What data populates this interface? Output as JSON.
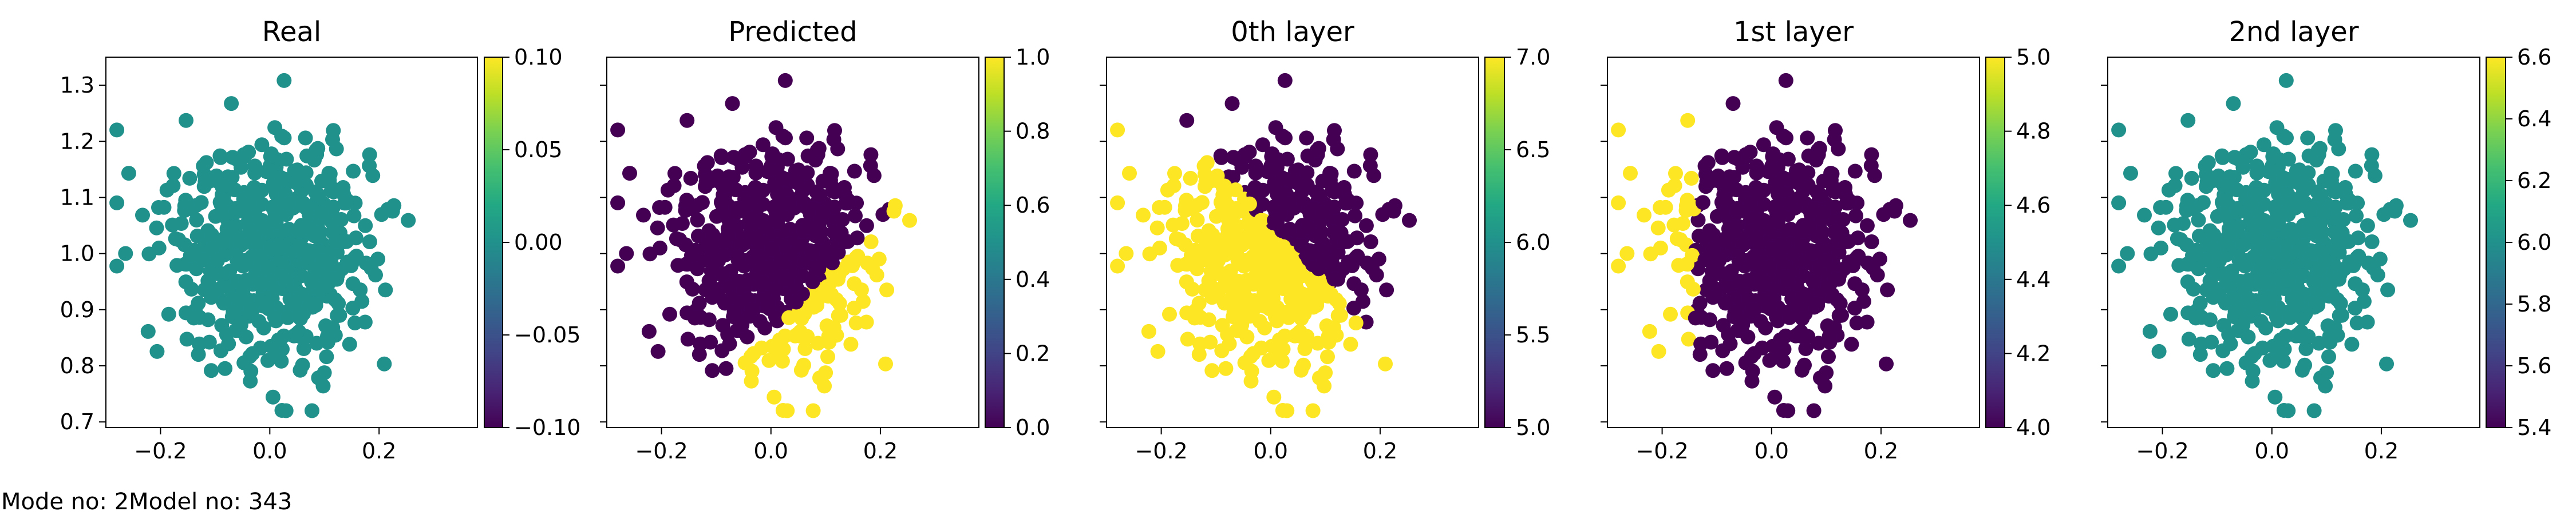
{
  "footer": {
    "mode_text": "Mode no: 2",
    "model_text": "Model no: 343"
  },
  "chart_data": [
    {
      "type": "scatter",
      "title": "Real",
      "xlim": [
        -0.3,
        0.38
      ],
      "ylim": [
        0.69,
        1.35
      ],
      "x_ticks": [
        -0.2,
        0.0,
        0.2
      ],
      "y_ticks": [
        0.7,
        0.8,
        0.9,
        1.0,
        1.1,
        1.2,
        1.3
      ],
      "colorbar": {
        "colormap": "viridis",
        "range": [
          -0.1,
          0.1
        ],
        "ticks": [
          -0.1,
          -0.05,
          0.0,
          0.05,
          0.1
        ]
      },
      "point_value": 0.0,
      "grid": false,
      "legend": null
    },
    {
      "type": "scatter",
      "title": "Predicted",
      "xlim": [
        -0.3,
        0.38
      ],
      "ylim": [
        0.69,
        1.35
      ],
      "x_ticks": [
        -0.2,
        0.0,
        0.2
      ],
      "colorbar": {
        "colormap": "viridis",
        "range": [
          0.0,
          1.0
        ],
        "ticks": [
          0.0,
          0.2,
          0.4,
          0.6,
          0.8,
          1.0
        ]
      },
      "classes": [
        {
          "value": 0,
          "color": "#440154",
          "rule": "x - y <= -0.86"
        },
        {
          "value": 1,
          "color": "#fde725",
          "rule": "x - y > -0.86"
        }
      ],
      "grid": false,
      "legend": null
    },
    {
      "type": "scatter",
      "title": "0th layer",
      "xlim": [
        -0.3,
        0.38
      ],
      "ylim": [
        0.69,
        1.35
      ],
      "x_ticks": [
        -0.2,
        0.0,
        0.2
      ],
      "colorbar": {
        "colormap": "viridis",
        "range": [
          5.0,
          7.0
        ],
        "ticks": [
          5.0,
          5.5,
          6.0,
          6.5,
          7.0
        ]
      },
      "classes": [
        {
          "value": 5,
          "color": "#440154",
          "rule": "x + y > 1.05"
        },
        {
          "value": 7,
          "color": "#fde725",
          "rule": "x + y <= 1.05"
        }
      ],
      "grid": false,
      "legend": null
    },
    {
      "type": "scatter",
      "title": "1st layer",
      "xlim": [
        -0.3,
        0.38
      ],
      "ylim": [
        0.69,
        1.35
      ],
      "x_ticks": [
        -0.2,
        0.0,
        0.2
      ],
      "colorbar": {
        "colormap": "viridis",
        "range": [
          4.0,
          5.0
        ],
        "ticks": [
          4.0,
          4.2,
          4.4,
          4.6,
          4.8,
          5.0
        ]
      },
      "classes": [
        {
          "value": 4,
          "color": "#440154",
          "rule": "x > -0.14"
        },
        {
          "value": 5,
          "color": "#fde725",
          "rule": "x <= -0.14"
        }
      ],
      "grid": false,
      "legend": null
    },
    {
      "type": "scatter",
      "title": "2nd layer",
      "xlim": [
        -0.3,
        0.38
      ],
      "ylim": [
        0.69,
        1.35
      ],
      "x_ticks": [
        -0.2,
        0.0,
        0.2
      ],
      "colorbar": {
        "colormap": "viridis",
        "range": [
          5.4,
          6.6
        ],
        "ticks": [
          5.4,
          5.6,
          5.8,
          6.0,
          6.2,
          6.4,
          6.6
        ]
      },
      "point_value": 6.0,
      "grid": false,
      "legend": null
    }
  ]
}
